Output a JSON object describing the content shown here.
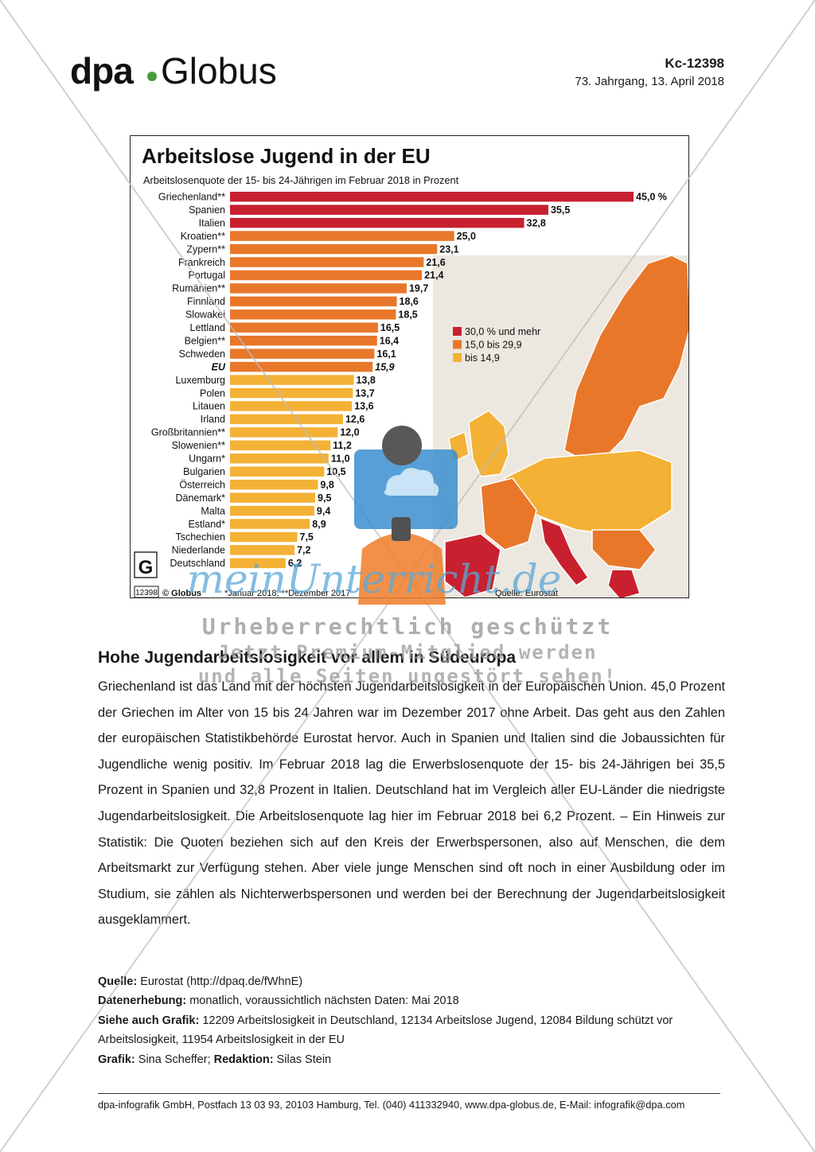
{
  "header": {
    "logo_dpa": "dpa",
    "logo_globus": "Globus",
    "code": "Kc-12398",
    "issue": "73. Jahrgang, 13. April 2018"
  },
  "chart_data": {
    "type": "bar",
    "title": "Arbeitslose Jugend in der EU",
    "subtitle": "Arbeitslosenquote der 15- bis 24-Jährigen im Februar 2018 in Prozent",
    "categories": [
      "Griechenland**",
      "Spanien",
      "Italien",
      "Kroatien**",
      "Zypern**",
      "Frankreich",
      "Portugal",
      "Rumänien**",
      "Finnland",
      "Slowakei",
      "Lettland",
      "Belgien**",
      "Schweden",
      "EU",
      "Luxemburg",
      "Polen",
      "Litauen",
      "Irland",
      "Großbritannien**",
      "Slowenien**",
      "Ungarn*",
      "Bulgarien",
      "Österreich",
      "Dänemark*",
      "Malta",
      "Estland*",
      "Tschechien",
      "Niederlande",
      "Deutschland"
    ],
    "values": [
      45.0,
      35.5,
      32.8,
      25.0,
      23.1,
      21.6,
      21.4,
      19.7,
      18.6,
      18.5,
      16.5,
      16.4,
      16.1,
      15.9,
      13.8,
      13.7,
      13.6,
      12.6,
      12.0,
      11.2,
      11.0,
      10.5,
      9.8,
      9.5,
      9.4,
      8.9,
      7.5,
      7.2,
      6.2
    ],
    "value_labels": [
      "45,0 %",
      "35,5",
      "32,8",
      "25,0",
      "23,1",
      "21,6",
      "21,4",
      "19,7",
      "18,6",
      "18,5",
      "16,5",
      "16,4",
      "16,1",
      "15,9",
      "13,8",
      "13,7",
      "13,6",
      "12,6",
      "12,0",
      "11,2",
      "11,0",
      "10,5",
      "9,8",
      "9,5",
      "9,4",
      "8,9",
      "7,5",
      "7,2",
      "6,2"
    ],
    "highlight_category": "EU",
    "xlim": [
      0,
      45
    ],
    "legend": [
      {
        "label": "30,0 % und mehr",
        "color": "#c8202f"
      },
      {
        "label": "15,0 bis 29,9",
        "color": "#e8772a"
      },
      {
        "label": "bis 14,9",
        "color": "#f3b135"
      }
    ],
    "legend_position": "right",
    "colors": {
      "high": "#c8202f",
      "mid": "#e8772a",
      "low": "#f3b135",
      "map_bg": "#ece7df"
    },
    "footnote": "*Januar 2018, **Dezember 2017",
    "source": "Quelle: Eurostat",
    "badge_number": "12398",
    "copyright": "© Globus"
  },
  "article": {
    "headline": "Hohe Jugendarbeitslosigkeit vor allem in Südeuropa",
    "body": "Griechenland ist das Land mit der höchsten Jugendarbeitslosigkeit in der Europäischen Union. 45,0 Prozent der Griechen im Alter von 15 bis 24 Jahren war im Dezember 2017 ohne Arbeit. Das geht aus den Zahlen der europäischen Statistikbehörde Eurostat hervor. Auch in Spanien und Italien sind die Jobaussichten für Jugendliche wenig positiv. Im Februar 2018 lag die Erwerbslosenquote der 15- bis 24-Jährigen bei 35,5 Prozent in Spanien und 32,8 Prozent in Italien. Deutschland hat im Vergleich aller EU-Länder die niedrigste Jugendarbeitslosigkeit. Die Arbeitslosenquote lag hier im Februar 2018 bei 6,2 Prozent. – Ein Hinweis zur Statistik: Die Quoten beziehen sich auf den Kreis der Erwerbspersonen, also auf Menschen, die dem Arbeitsmarkt zur Verfügung stehen. Aber viele junge Menschen sind oft noch in einer Ausbildung oder im Studium, sie zählen als Nichterwerbspersonen und werden bei der Berechnung der Jugendarbeitslosigkeit ausgeklammert."
  },
  "meta": {
    "source_label": "Quelle:",
    "source_value": "Eurostat (http://dpaq.de/fWhnE)",
    "collection_label": "Datenerhebung:",
    "collection_value": "monatlich, voraussichtlich nächsten Daten: Mai 2018",
    "see_also_label": "Siehe auch Grafik:",
    "see_also_value": "12209 Arbeitslosigkeit in Deutschland, 12134 Arbeitslose Jugend, 12084 Bildung schützt vor Arbeitslosigkeit, 11954 Arbeitslosigkeit in der EU",
    "graphic_label": "Grafik:",
    "graphic_value": "Sina Scheffer;",
    "editor_label": "Redaktion:",
    "editor_value": "Silas Stein"
  },
  "footer": {
    "text": "dpa-infografik GmbH, Postfach 13 03 93, 20103 Hamburg, Tel. (040) 411332940, www.dpa-globus.de, E-Mail: infografik@dpa.com"
  },
  "watermark": {
    "brand": "meinUnterricht.de",
    "copyright": "Urheberrechtlich geschützt",
    "promo_line1": "Jetzt Premium-Mitglied werden",
    "promo_line2": "und alle Seiten ungestört sehen!"
  }
}
